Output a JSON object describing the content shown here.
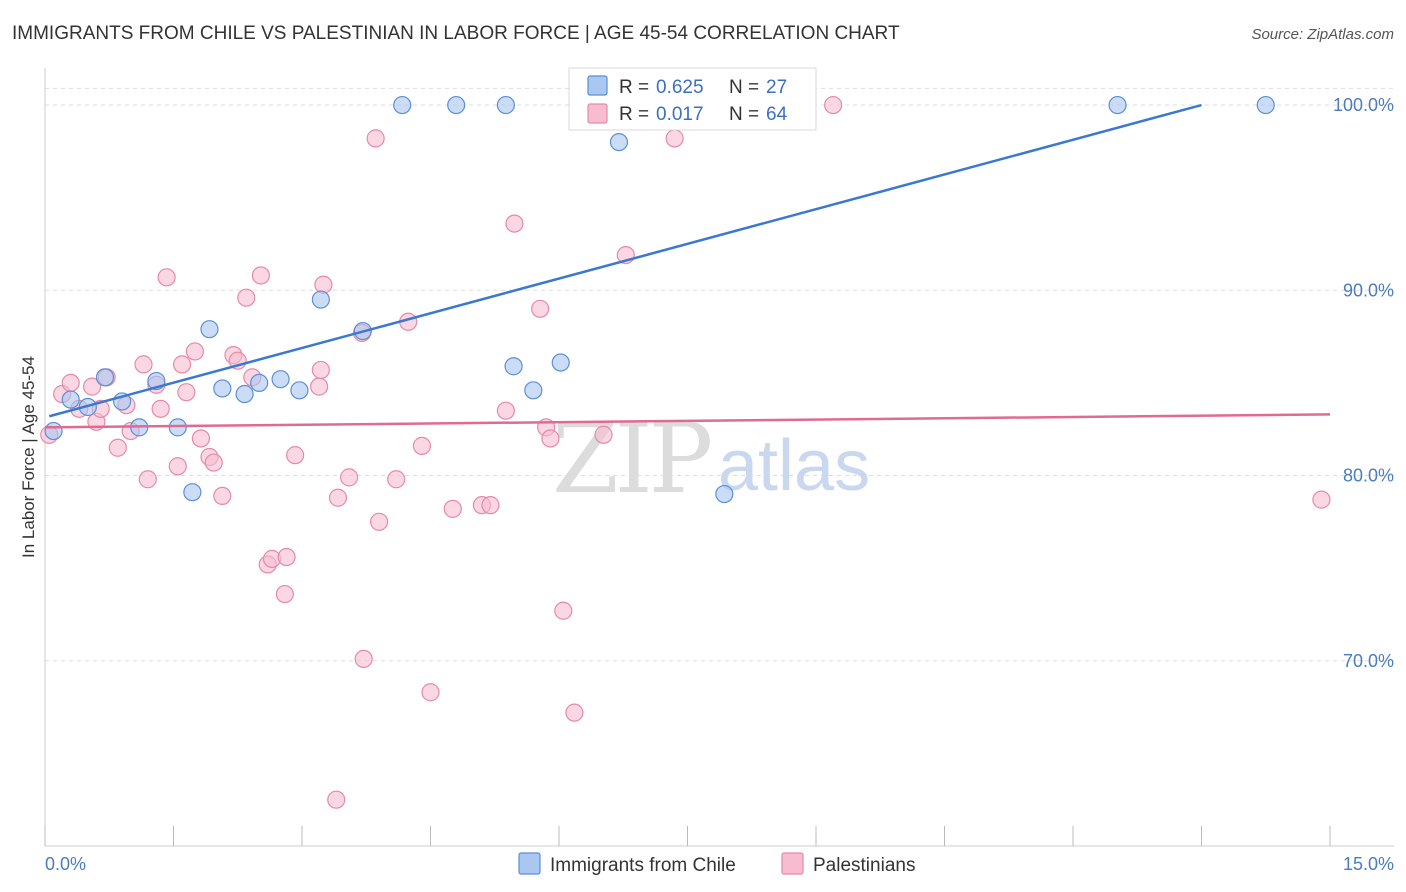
{
  "title": "IMMIGRANTS FROM CHILE VS PALESTINIAN IN LABOR FORCE | AGE 45-54 CORRELATION CHART",
  "source": "Source: ZipAtlas.com",
  "watermark": {
    "zip": "ZIP",
    "atlas": "atlas"
  },
  "colors": {
    "chile_fill": "#a9c7f0",
    "chile_stroke": "#5b8fd6",
    "chile_line": "#3b78d0",
    "pal_fill": "#f7bcd0",
    "pal_stroke": "#e68aa8",
    "pal_line": "#e06a92",
    "grid": "#dddddd",
    "tick_text": "#4a7cc0"
  },
  "legend": {
    "r_label": "R =",
    "n_label": "N =",
    "chile": {
      "r": "0.625",
      "n": "27"
    },
    "pal": {
      "r": "0.017",
      "n": "64"
    }
  },
  "chart_data": {
    "type": "scatter",
    "title": "IMMIGRANTS FROM CHILE VS PALESTINIAN IN LABOR FORCE | AGE 45-54 CORRELATION CHART",
    "xlabel": "",
    "ylabel": "In Labor Force | Age 45-54",
    "xlim": [
      0,
      15
    ],
    "ylim": [
      60,
      102
    ],
    "x_tick_labels": [
      "0.0%",
      "15.0%"
    ],
    "y_ticks": [
      70,
      80,
      90,
      100
    ],
    "y_tick_labels": [
      "70.0%",
      "80.0%",
      "90.0%",
      "100.0%"
    ],
    "grid": true,
    "legend_position": "top-center",
    "series": [
      {
        "name": "Immigrants from Chile",
        "color": "#a9c7f0",
        "points": [
          [
            0.1,
            82.4
          ],
          [
            0.3,
            84.1
          ],
          [
            0.5,
            83.7
          ],
          [
            0.7,
            85.3
          ],
          [
            0.9,
            84.0
          ],
          [
            1.1,
            82.6
          ],
          [
            1.3,
            85.1
          ],
          [
            1.55,
            82.6
          ],
          [
            1.72,
            79.1
          ],
          [
            1.92,
            87.9
          ],
          [
            2.07,
            84.7
          ],
          [
            2.33,
            84.4
          ],
          [
            2.5,
            85.0
          ],
          [
            2.75,
            85.2
          ],
          [
            2.97,
            84.6
          ],
          [
            3.22,
            89.5
          ],
          [
            3.71,
            87.8
          ],
          [
            4.17,
            100.0
          ],
          [
            4.8,
            100.0
          ],
          [
            5.38,
            100.0
          ],
          [
            5.47,
            85.9
          ],
          [
            5.7,
            84.6
          ],
          [
            6.02,
            86.1
          ],
          [
            6.7,
            98.0
          ],
          [
            7.93,
            79.0
          ],
          [
            12.52,
            100.0
          ],
          [
            14.25,
            100.0
          ]
        ],
        "trend": {
          "x": [
            0.05,
            13.5
          ],
          "y": [
            83.2,
            100.0
          ]
        }
      },
      {
        "name": "Palestinians",
        "color": "#f7bcd0",
        "points": [
          [
            0.05,
            82.2
          ],
          [
            0.2,
            84.4
          ],
          [
            0.3,
            85.0
          ],
          [
            0.4,
            83.6
          ],
          [
            0.55,
            84.8
          ],
          [
            0.6,
            82.9
          ],
          [
            0.65,
            83.6
          ],
          [
            0.72,
            85.3
          ],
          [
            0.85,
            81.5
          ],
          [
            0.95,
            83.8
          ],
          [
            1.0,
            82.4
          ],
          [
            1.15,
            86.0
          ],
          [
            1.2,
            79.8
          ],
          [
            1.3,
            84.9
          ],
          [
            1.35,
            83.6
          ],
          [
            1.42,
            90.7
          ],
          [
            1.55,
            80.5
          ],
          [
            1.6,
            86.0
          ],
          [
            1.65,
            84.5
          ],
          [
            1.75,
            86.7
          ],
          [
            1.82,
            82.0
          ],
          [
            1.92,
            81.0
          ],
          [
            1.97,
            80.7
          ],
          [
            2.07,
            78.9
          ],
          [
            2.2,
            86.5
          ],
          [
            2.25,
            86.2
          ],
          [
            2.35,
            89.6
          ],
          [
            2.42,
            85.3
          ],
          [
            2.52,
            90.8
          ],
          [
            2.6,
            75.2
          ],
          [
            2.65,
            75.5
          ],
          [
            2.8,
            73.6
          ],
          [
            2.82,
            75.6
          ],
          [
            2.92,
            81.1
          ],
          [
            3.2,
            84.8
          ],
          [
            3.22,
            85.7
          ],
          [
            3.25,
            90.3
          ],
          [
            3.4,
            62.5
          ],
          [
            3.42,
            78.8
          ],
          [
            3.55,
            79.9
          ],
          [
            3.7,
            87.7
          ],
          [
            3.72,
            70.1
          ],
          [
            3.86,
            98.2
          ],
          [
            3.9,
            77.5
          ],
          [
            4.1,
            79.8
          ],
          [
            4.24,
            88.3
          ],
          [
            4.4,
            81.6
          ],
          [
            4.5,
            68.3
          ],
          [
            4.76,
            78.2
          ],
          [
            5.1,
            78.4
          ],
          [
            5.2,
            78.4
          ],
          [
            5.38,
            83.5
          ],
          [
            5.48,
            93.6
          ],
          [
            5.78,
            89.0
          ],
          [
            5.85,
            82.6
          ],
          [
            5.9,
            82.0
          ],
          [
            6.05,
            72.7
          ],
          [
            6.18,
            67.2
          ],
          [
            6.52,
            82.2
          ],
          [
            6.78,
            91.9
          ],
          [
            7.35,
            98.2
          ],
          [
            7.6,
            100.0
          ],
          [
            9.2,
            100.0
          ],
          [
            14.9,
            78.7
          ]
        ],
        "trend": {
          "x": [
            0.0,
            15.0
          ],
          "y": [
            82.6,
            83.3
          ]
        }
      }
    ]
  }
}
